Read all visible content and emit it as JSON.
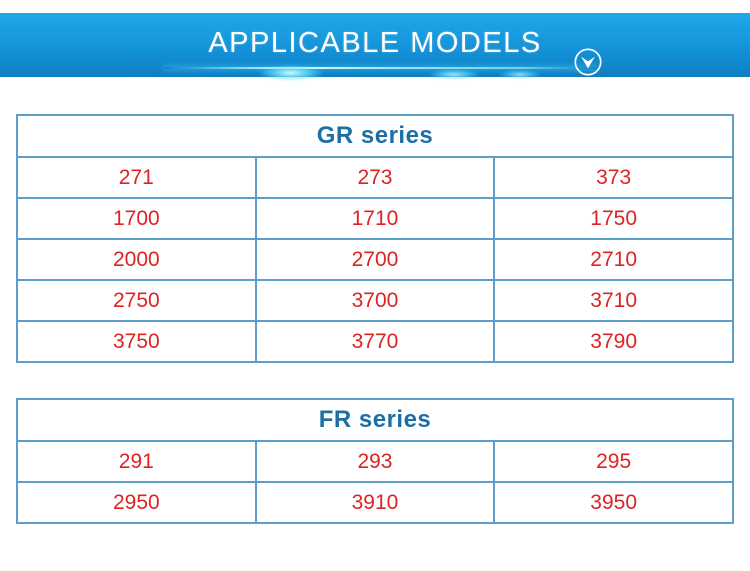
{
  "banner": {
    "title": "APPLICABLE MODELS",
    "icon": "circle-chevron-down-icon"
  },
  "tables": [
    {
      "id": "gr",
      "title": "GR series",
      "rows": [
        [
          "271",
          "273",
          "373"
        ],
        [
          "1700",
          "1710",
          "1750"
        ],
        [
          "2000",
          "2700",
          "2710"
        ],
        [
          "2750",
          "3700",
          "3710"
        ],
        [
          "3750",
          "3770",
          "3790"
        ]
      ]
    },
    {
      "id": "fr",
      "title": "FR series",
      "rows": [
        [
          "291",
          "293",
          "295"
        ],
        [
          "2950",
          "3910",
          "3950"
        ]
      ]
    }
  ],
  "colors": {
    "banner_gradient_top": "#1ea9e9",
    "banner_gradient_bottom": "#0d7ec2",
    "banner_text": "#ffffff",
    "glow_streak": "#8deeff",
    "table_border": "#5d9fc9",
    "table_title_text": "#1e6ea6",
    "cell_text": "#dd2323",
    "page_background": "#ffffff"
  }
}
